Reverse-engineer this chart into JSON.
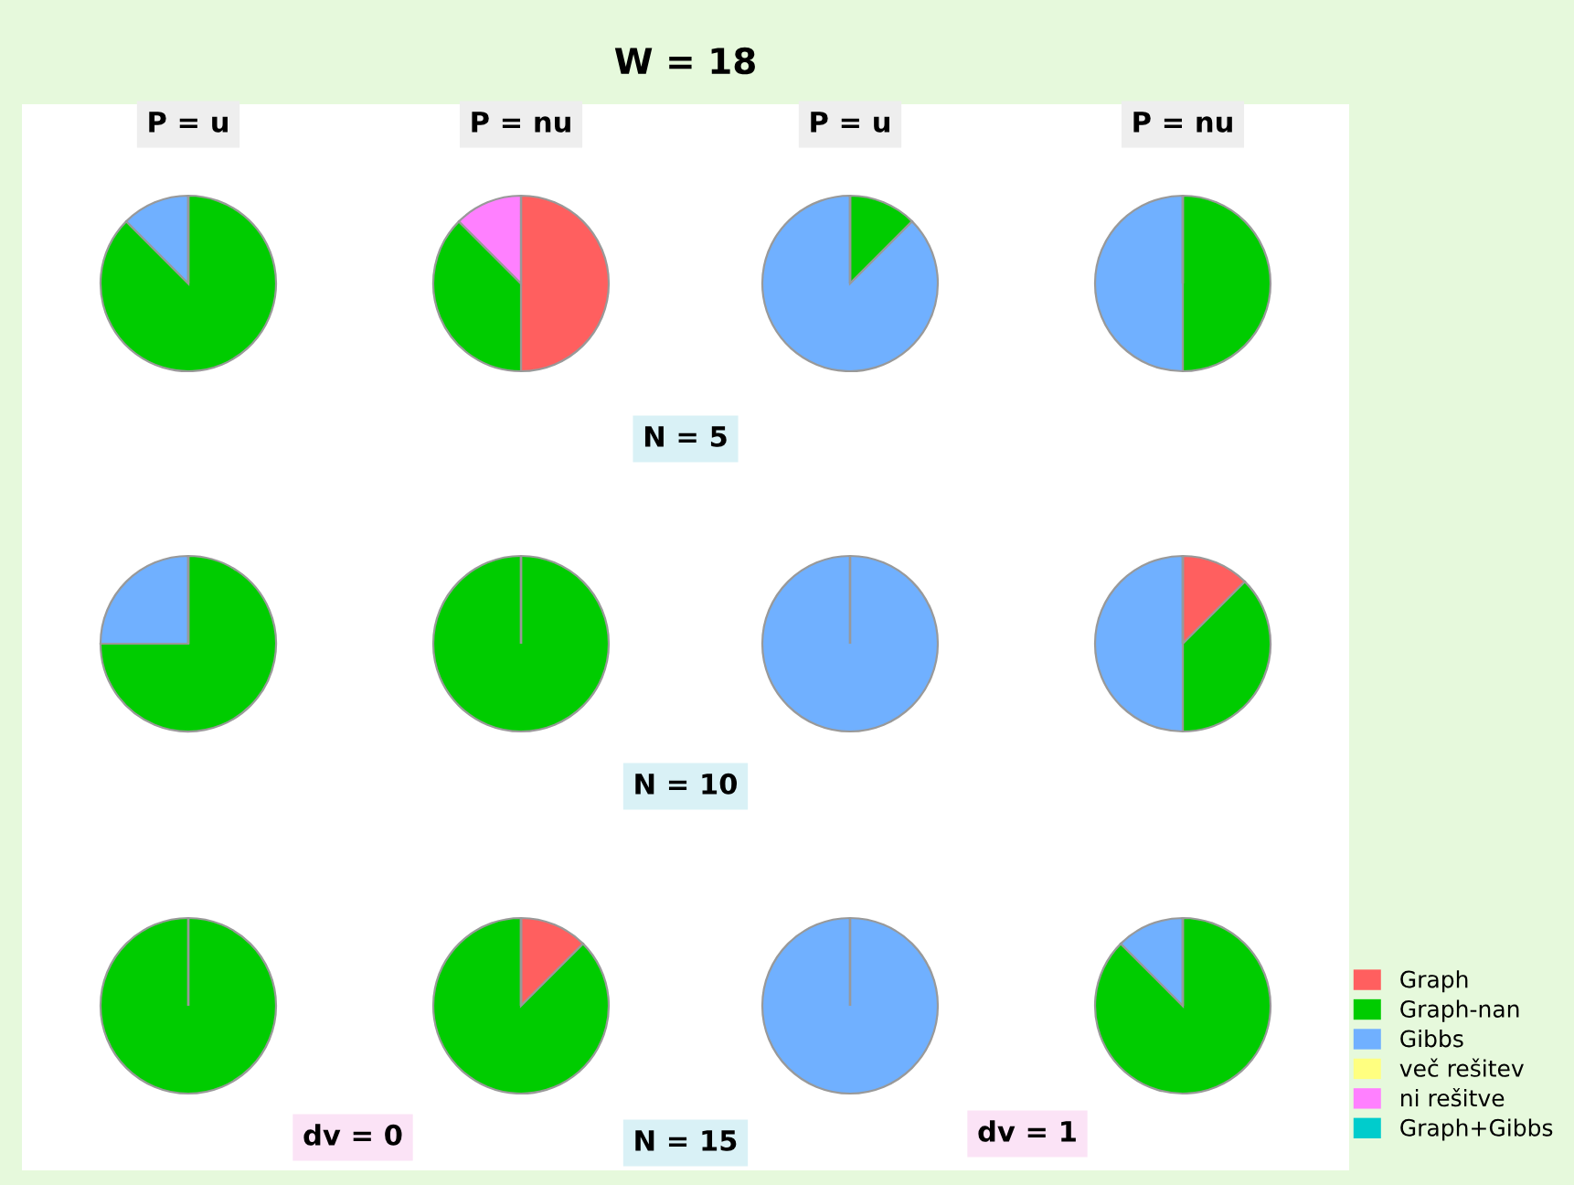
{
  "chart_data": [
    {
      "type": "pie",
      "categories": [
        "Graph",
        "Graph-nan",
        "Gibbs",
        "več rešitev",
        "ni rešitve",
        "Graph+Gibbs"
      ],
      "values": [
        0,
        87.5,
        12.5,
        0,
        0,
        0
      ],
      "colors": [
        "#ff5f5f",
        "#00cc00",
        "#70b0ff",
        "#ffff80",
        "#ff80ff",
        "#00cccc"
      ],
      "legend": "bottom right"
    },
    {
      "type": "pie",
      "categories": [
        null,
        null,
        null,
        null,
        null,
        null
      ],
      "values": [
        50,
        37.5,
        0,
        0,
        12.5,
        0
      ],
      "colors": [
        "#ff5f5f",
        "#00cc00",
        "#70b0ff",
        "#ffff80",
        "#ff80ff",
        "#00cccc"
      ]
    },
    {
      "type": "pie",
      "categories": [
        null,
        null,
        null,
        null,
        null,
        null
      ],
      "values": [
        0,
        12.5,
        87.5,
        0,
        0,
        0
      ],
      "colors": [
        "#ff5f5f",
        "#00cc00",
        "#70b0ff",
        "#ffff80",
        "#ff80ff",
        "#00cccc"
      ]
    },
    {
      "type": "pie",
      "categories": [
        null,
        null,
        null,
        null,
        null,
        null
      ],
      "values": [
        0,
        50,
        50,
        0,
        0,
        0
      ],
      "colors": [
        "#ff5f5f",
        "#00cc00",
        "#70b0ff",
        "#ffff80",
        "#ff80ff",
        "#00cccc"
      ]
    },
    {
      "type": "pie",
      "categories": [
        null,
        null,
        null,
        null,
        null,
        null
      ],
      "values": [
        0,
        75,
        25,
        0,
        0,
        0
      ],
      "colors": [
        "#ff5f5f",
        "#00cc00",
        "#70b0ff",
        "#ffff80",
        "#ff80ff",
        "#00cccc"
      ]
    },
    {
      "type": "pie",
      "categories": [
        null,
        null,
        null,
        null,
        null,
        null
      ],
      "values": [
        0,
        100,
        0,
        0,
        0,
        0
      ],
      "colors": [
        "#ff5f5f",
        "#00cc00",
        "#70b0ff",
        "#ffff80",
        "#ff80ff",
        "#00cccc"
      ]
    },
    {
      "type": "pie",
      "categories": [
        null,
        null,
        null,
        null,
        null,
        null
      ],
      "values": [
        0,
        0,
        100,
        0,
        0,
        0
      ],
      "colors": [
        "#ff5f5f",
        "#00cc00",
        "#70b0ff",
        "#ffff80",
        "#ff80ff",
        "#00cccc"
      ]
    },
    {
      "type": "pie",
      "categories": [
        null,
        null,
        null,
        null,
        null,
        null
      ],
      "values": [
        12.5,
        37.5,
        50,
        0,
        0,
        0
      ],
      "colors": [
        "#ff5f5f",
        "#00cc00",
        "#70b0ff",
        "#ffff80",
        "#ff80ff",
        "#00cccc"
      ]
    },
    {
      "type": "pie",
      "categories": [
        null,
        null,
        null,
        null,
        null,
        null
      ],
      "values": [
        0,
        100,
        0,
        0,
        0,
        0
      ],
      "colors": [
        "#ff5f5f",
        "#00cc00",
        "#70b0ff",
        "#ffff80",
        "#ff80ff",
        "#00cccc"
      ]
    },
    {
      "type": "pie",
      "categories": [
        null,
        null,
        null,
        null,
        null,
        null
      ],
      "values": [
        12.5,
        87.5,
        0,
        0,
        0,
        0
      ],
      "colors": [
        "#ff5f5f",
        "#00cc00",
        "#70b0ff",
        "#ffff80",
        "#ff80ff",
        "#00cccc"
      ]
    },
    {
      "type": "pie",
      "categories": [
        null,
        null,
        null,
        null,
        null,
        null
      ],
      "values": [
        0,
        0,
        100,
        0,
        0,
        0
      ],
      "colors": [
        "#ff5f5f",
        "#00cc00",
        "#70b0ff",
        "#ffff80",
        "#ff80ff",
        "#00cccc"
      ]
    },
    {
      "type": "pie",
      "categories": [
        null,
        null,
        null,
        null,
        null,
        null
      ],
      "values": [
        0,
        87.5,
        12.5,
        0,
        0,
        0
      ],
      "colors": [
        "#ff5f5f",
        "#00cc00",
        "#70b0ff",
        "#ffff80",
        "#ff80ff",
        "#00cccc"
      ]
    },
    {
      "type": "other",
      "title": "W = 18",
      "annotations": [
        "P = u",
        "P = nu",
        "P = u",
        "P = nu",
        "N = 5",
        "N = 10",
        "N = 15",
        "dv = 0",
        "dv = 1"
      ]
    }
  ]
}
